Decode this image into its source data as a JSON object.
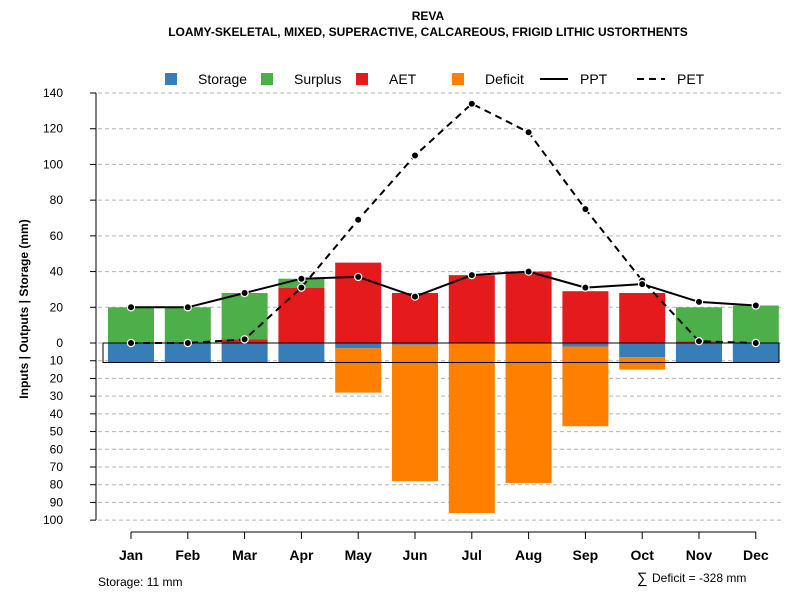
{
  "chart_data": {
    "type": "bar",
    "title": "REVA",
    "subtitle": "LOAMY-SKELETAL, MIXED, SUPERACTIVE, CALCAREOUS, FRIGID LITHIC USTORTHENTS",
    "ylabel": "Inputs | Outputs | Storage    (mm)",
    "categories": [
      "Jan",
      "Feb",
      "Mar",
      "Apr",
      "May",
      "Jun",
      "Jul",
      "Aug",
      "Sep",
      "Oct",
      "Nov",
      "Dec"
    ],
    "upper_axis": {
      "ylim": [
        0,
        140
      ],
      "ticks": [
        "0",
        "20",
        "40",
        "60",
        "80",
        "100",
        "120",
        "140"
      ]
    },
    "lower_axis": {
      "ylim": [
        0,
        100
      ],
      "ticks": [
        "10",
        "20",
        "30",
        "40",
        "50",
        "60",
        "70",
        "80",
        "90",
        "100"
      ]
    },
    "series": [
      {
        "name": "Storage",
        "color": "#377EB8",
        "values": [
          -11,
          -11,
          -11,
          -11,
          -3,
          -1,
          0,
          0,
          -2,
          -8,
          -11,
          -11
        ]
      },
      {
        "name": "Surplus",
        "color": "#4DAF4A",
        "values": [
          20,
          20,
          26,
          5,
          0,
          0,
          0,
          0,
          0,
          0,
          19,
          21
        ]
      },
      {
        "name": "AET",
        "color": "#E41A1C",
        "values": [
          0,
          0,
          2,
          31,
          45,
          28,
          38,
          40,
          29,
          28,
          1,
          0
        ]
      },
      {
        "name": "Deficit",
        "color": "#FF7F00",
        "values": [
          0,
          0,
          0,
          0,
          -25,
          -77,
          -96,
          -79,
          -45,
          -7,
          0,
          0
        ]
      },
      {
        "name": "PPT",
        "color": "#000000",
        "line": "solid",
        "values": [
          20,
          20,
          28,
          36,
          37,
          26,
          38,
          40,
          31,
          33,
          23,
          21
        ]
      },
      {
        "name": "PET",
        "color": "#000000",
        "line": "dashed",
        "values": [
          0,
          0,
          2,
          31,
          69,
          105,
          134,
          118,
          75,
          35,
          1,
          0
        ]
      }
    ],
    "storage_capacity": 11,
    "grid": true,
    "legend_position": "top"
  },
  "footer": {
    "storage_label": "Storage: 11 mm",
    "deficit_symbol": "∑",
    "deficit_label": "Deficit = -328 mm"
  }
}
